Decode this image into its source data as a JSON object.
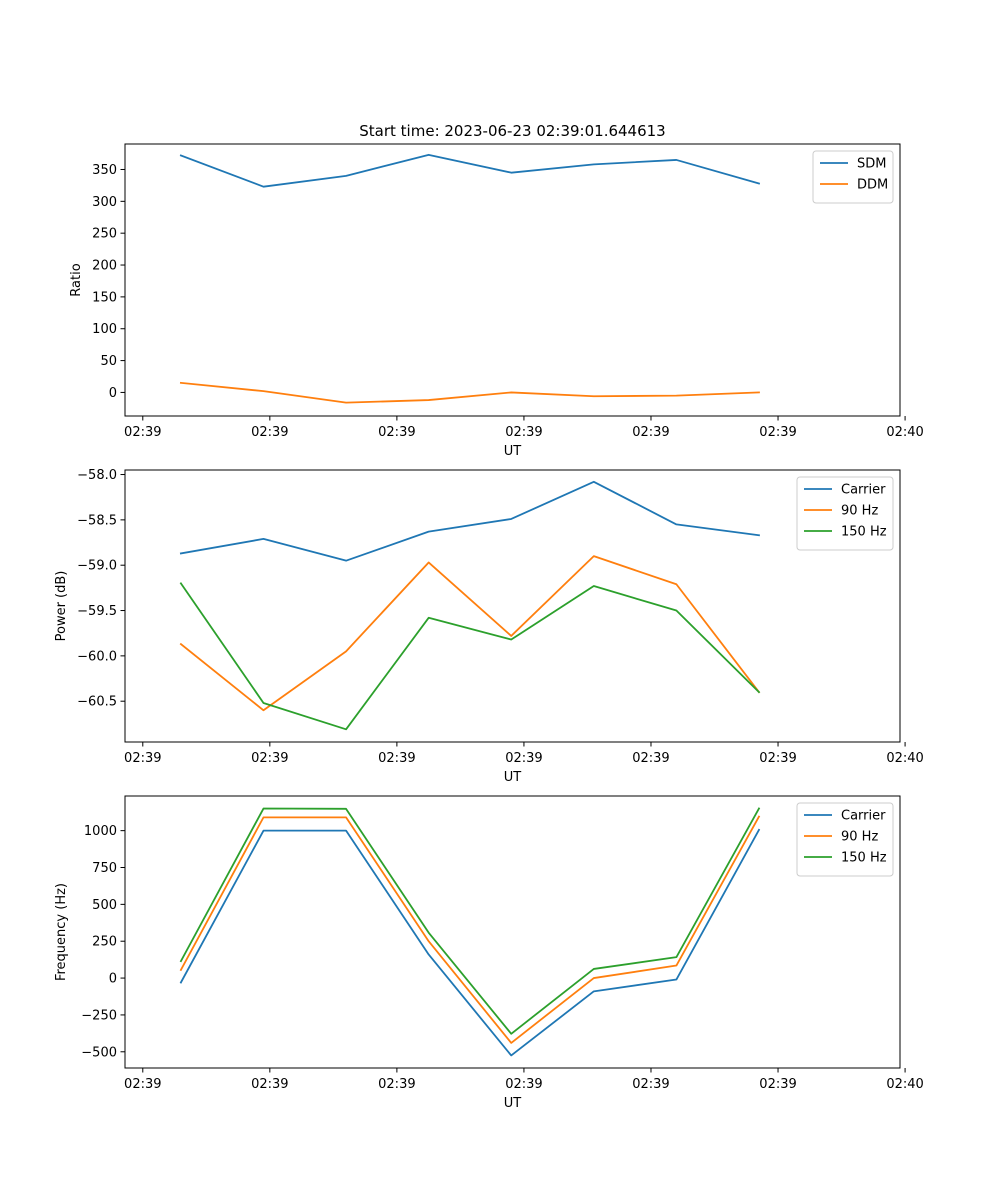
{
  "chart_data": [
    {
      "type": "line",
      "title": "Start time: 2023-06-23 02:39:01.644613",
      "xlabel": "UT",
      "ylabel": "Ratio",
      "x": [
        0.3,
        0.95,
        1.6,
        2.25,
        2.9,
        3.55,
        4.2,
        4.85
      ],
      "xlim": [
        -0.14,
        5.96
      ],
      "x_ticks": [
        0,
        1,
        2,
        3,
        4,
        5,
        6
      ],
      "x_tick_labels": [
        "02:39",
        "02:39",
        "02:39",
        "02:39",
        "02:39",
        "02:39",
        "02:40"
      ],
      "ylim": [
        -37,
        390
      ],
      "y_ticks": [
        0,
        50,
        100,
        150,
        200,
        250,
        300,
        350
      ],
      "y_tick_labels": [
        "0",
        "50",
        "100",
        "150",
        "200",
        "250",
        "300",
        "350"
      ],
      "grid": false,
      "legend": "top-right",
      "series": [
        {
          "name": "SDM",
          "color": "#1f77b4",
          "values": [
            372,
            323,
            340,
            373,
            345,
            358,
            365,
            328
          ]
        },
        {
          "name": "DDM",
          "color": "#ff7f0e",
          "values": [
            15,
            2,
            -16,
            -12,
            0,
            -6,
            -5,
            0
          ]
        }
      ]
    },
    {
      "type": "line",
      "xlabel": "UT",
      "ylabel": "Power (dB)",
      "x": [
        0.3,
        0.95,
        1.6,
        2.25,
        2.9,
        3.55,
        4.2,
        4.85
      ],
      "xlim": [
        -0.14,
        5.96
      ],
      "x_ticks": [
        0,
        1,
        2,
        3,
        4,
        5,
        6
      ],
      "x_tick_labels": [
        "02:39",
        "02:39",
        "02:39",
        "02:39",
        "02:39",
        "02:39",
        "02:40"
      ],
      "ylim": [
        -60.95,
        -57.95
      ],
      "y_ticks": [
        -60.5,
        -60.0,
        -59.5,
        -59.0,
        -58.5,
        -58.0
      ],
      "y_tick_labels": [
        "−60.5",
        "−60.0",
        "−59.5",
        "−59.0",
        "−58.5",
        "−58.0"
      ],
      "grid": false,
      "legend": "top-right",
      "series": [
        {
          "name": "Carrier",
          "color": "#1f77b4",
          "values": [
            -58.87,
            -58.71,
            -58.95,
            -58.63,
            -58.49,
            -58.08,
            -58.55,
            -58.67
          ]
        },
        {
          "name": "90 Hz",
          "color": "#ff7f0e",
          "values": [
            -59.87,
            -60.6,
            -59.95,
            -58.97,
            -59.78,
            -58.9,
            -59.21,
            -60.4
          ]
        },
        {
          "name": "150 Hz",
          "color": "#2ca02c",
          "values": [
            -59.2,
            -60.52,
            -60.81,
            -59.58,
            -59.82,
            -59.23,
            -59.5,
            -60.4
          ]
        }
      ]
    },
    {
      "type": "line",
      "xlabel": "UT",
      "ylabel": "Frequency (Hz)",
      "x": [
        0.3,
        0.95,
        1.6,
        2.25,
        2.9,
        3.55,
        4.2,
        4.85
      ],
      "xlim": [
        -0.14,
        5.96
      ],
      "x_ticks": [
        0,
        1,
        2,
        3,
        4,
        5,
        6
      ],
      "x_tick_labels": [
        "02:39",
        "02:39",
        "02:39",
        "02:39",
        "02:39",
        "02:39",
        "02:40"
      ],
      "ylim": [
        -610,
        1235
      ],
      "y_ticks": [
        -500,
        -250,
        0,
        250,
        500,
        750,
        1000
      ],
      "y_tick_labels": [
        "−500",
        "−250",
        "0",
        "250",
        "500",
        "750",
        "1000"
      ],
      "grid": false,
      "legend": "top-right",
      "series": [
        {
          "name": "Carrier",
          "color": "#1f77b4",
          "values": [
            -30,
            1000,
            1000,
            160,
            -525,
            -90,
            -10,
            1005
          ]
        },
        {
          "name": "90 Hz",
          "color": "#ff7f0e",
          "values": [
            55,
            1090,
            1090,
            250,
            -440,
            0,
            85,
            1095
          ]
        },
        {
          "name": "150 Hz",
          "color": "#2ca02c",
          "values": [
            115,
            1150,
            1148,
            308,
            -378,
            62,
            142,
            1150
          ]
        }
      ]
    }
  ]
}
